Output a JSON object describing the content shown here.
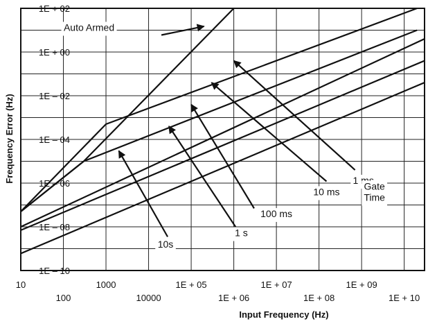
{
  "chart_data": {
    "type": "line",
    "title": "",
    "xlabel": "Input Frequency (Hz)",
    "ylabel": "Frequency Error (Hz)",
    "x_scale": "log",
    "y_scale": "log",
    "xlim": [
      10,
      30000000000
    ],
    "ylim": [
      1e-10,
      100
    ],
    "grid": true,
    "x_ticks": [
      {
        "value": 10,
        "label": "10",
        "row": 0
      },
      {
        "value": 100,
        "label": "100",
        "row": 1
      },
      {
        "value": 1000,
        "label": "1000",
        "row": 0
      },
      {
        "value": 10000,
        "label": "10000",
        "row": 1
      },
      {
        "value": 100000,
        "label": "1E + 05",
        "row": 0
      },
      {
        "value": 1000000,
        "label": "1E + 06",
        "row": 1
      },
      {
        "value": 10000000,
        "label": "1E + 07",
        "row": 0
      },
      {
        "value": 100000000,
        "label": "1E + 08",
        "row": 1
      },
      {
        "value": 1000000000,
        "label": "1E + 09",
        "row": 0
      },
      {
        "value": 10000000000,
        "label": "1E + 10",
        "row": 1
      }
    ],
    "y_ticks": [
      {
        "value": 100,
        "label": "1E + 02"
      },
      {
        "value": 1,
        "label": "1E + 00"
      },
      {
        "value": 0.01,
        "label": "1E – 02"
      },
      {
        "value": 0.0001,
        "label": "1E – 04"
      },
      {
        "value": 1e-06,
        "label": "1E – 06"
      },
      {
        "value": 1e-08,
        "label": "1E – 08"
      },
      {
        "value": 1e-10,
        "label": "1E – 10"
      }
    ],
    "series": [
      {
        "name": "Auto Armed",
        "points": [
          [
            10,
            5e-08
          ],
          [
            300,
            1e-05
          ],
          [
            1000000,
            100
          ]
        ]
      },
      {
        "name": "1 ms",
        "points": [
          [
            10,
            5e-08
          ],
          [
            1000,
            0.0005
          ],
          [
            20000000000,
            100
          ]
        ]
      },
      {
        "name": "10 ms",
        "points": [
          [
            10,
            5e-08
          ],
          [
            300,
            1e-05
          ],
          [
            20000000000,
            10
          ]
        ]
      },
      {
        "name": "100 ms",
        "points": [
          [
            10,
            1e-08
          ],
          [
            30000000000,
            4
          ]
        ]
      },
      {
        "name": "1 s",
        "points": [
          [
            10,
            7e-09
          ],
          [
            30000000000,
            0.4
          ]
        ]
      },
      {
        "name": "10s",
        "points": [
          [
            10,
            6e-10
          ],
          [
            30000000000,
            0.04
          ]
        ]
      }
    ],
    "annotations": [
      {
        "id": "auto-armed",
        "text": "Auto Armed",
        "pos": [
          400,
          10
        ],
        "arrow_from": [
          20000,
          6
        ],
        "arrow_to": [
          200000,
          15
        ]
      },
      {
        "id": "1ms",
        "text": "1 ms",
        "pos": [
          1100000000,
          1e-06
        ],
        "arrow_from": [
          700000000,
          4e-06
        ],
        "arrow_to": [
          1000000,
          0.4
        ]
      },
      {
        "id": "10ms",
        "text": "10 ms",
        "pos": [
          150000000,
          3e-07
        ],
        "arrow_from": [
          150000000,
          1.2e-06
        ],
        "arrow_to": [
          300000,
          0.04
        ]
      },
      {
        "id": "gate-time",
        "text": "Gate\nTime",
        "pos": [
          2000000000,
          3e-07
        ]
      },
      {
        "id": "100ms",
        "text": "100 ms",
        "pos": [
          10000000,
          3e-08
        ],
        "arrow_from": [
          3000000,
          7e-08
        ],
        "arrow_to": [
          100000,
          0.004
        ]
      },
      {
        "id": "1s",
        "text": "1 s",
        "pos": [
          1500000,
          4e-09
        ],
        "arrow_from": [
          1100000,
          1e-08
        ],
        "arrow_to": [
          30000,
          0.0004
        ]
      },
      {
        "id": "10s",
        "text": "10s",
        "pos": [
          25000,
          1.2e-09
        ],
        "arrow_from": [
          28000,
          3.5e-09
        ],
        "arrow_to": [
          2000,
          3e-05
        ]
      }
    ]
  }
}
